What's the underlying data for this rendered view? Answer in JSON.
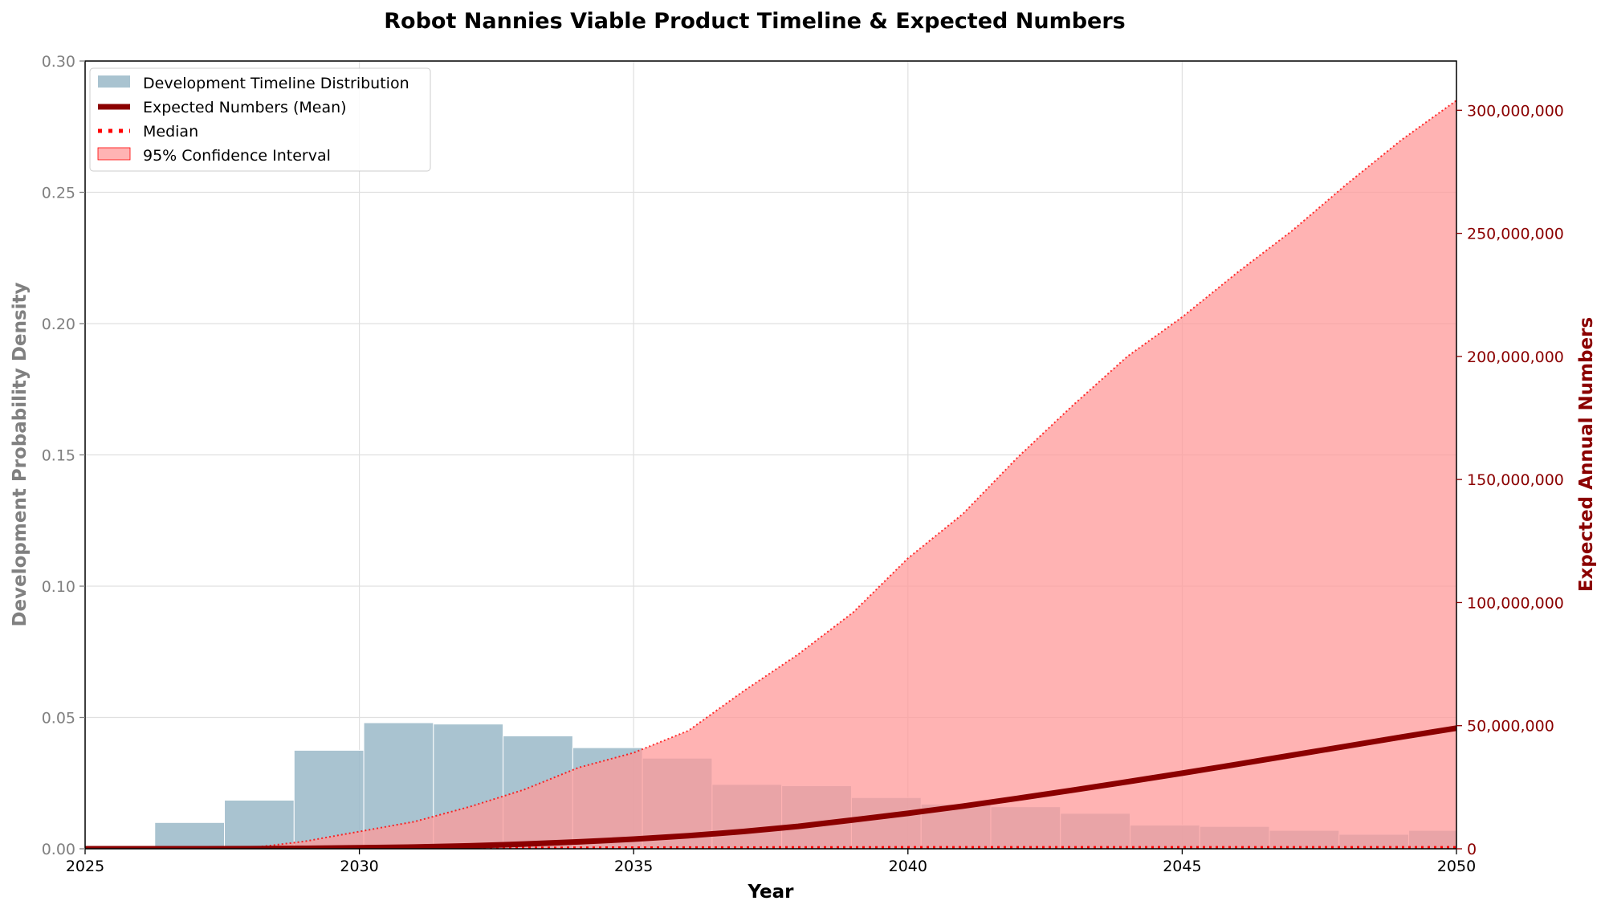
{
  "chart_data": {
    "type": "bar",
    "title": "Robot Nannies Viable Product Timeline & Expected Numbers",
    "xlabel": "Year",
    "ylabel_left": "Development Probability Density",
    "ylabel_right": "Expected Annual Numbers",
    "xlim": [
      2025,
      2050
    ],
    "ylim_left": [
      0,
      0.3
    ],
    "ylim_right": [
      0,
      320000000
    ],
    "x_ticks": [
      "2025",
      "2030",
      "2035",
      "2040",
      "2045",
      "2050"
    ],
    "y_left_ticks": [
      "0.00",
      "0.05",
      "0.10",
      "0.15",
      "0.20",
      "0.25",
      "0.30"
    ],
    "y_right_ticks": [
      "0",
      "50,000,000",
      "100,000,000",
      "150,000,000",
      "200,000,000",
      "250,000,000",
      "300,000,000"
    ],
    "grid": true,
    "legend_position": "top-left",
    "colors": {
      "histogram": "#9ab8c8",
      "mean": "#8b0000",
      "median": "#ff0000",
      "ci": "#ff9999",
      "right_axis": "#8b0000",
      "left_axis": "#808080"
    },
    "histogram": {
      "bin_edges": [
        2025.0,
        2026.27,
        2027.54,
        2028.81,
        2030.08,
        2031.35,
        2032.62,
        2033.89,
        2035.16,
        2036.43,
        2037.7,
        2038.97,
        2040.24,
        2041.51,
        2042.78,
        2044.05,
        2045.32,
        2046.59,
        2047.86,
        2049.13,
        2050.4
      ],
      "values": [
        0.0,
        0.01,
        0.0185,
        0.0375,
        0.048,
        0.0475,
        0.043,
        0.0385,
        0.0345,
        0.0245,
        0.024,
        0.0195,
        0.017,
        0.016,
        0.0135,
        0.009,
        0.0085,
        0.007,
        0.0055,
        0.007
      ]
    },
    "series": [
      {
        "name": "Expected Numbers (Mean)",
        "x": [
          2025,
          2026,
          2027,
          2028,
          2029,
          2030,
          2031,
          2032,
          2033,
          2034,
          2035,
          2036,
          2037,
          2038,
          2039,
          2040,
          2041,
          2042,
          2043,
          2044,
          2045,
          2046,
          2047,
          2048,
          2049,
          2050
        ],
        "values": [
          0,
          0,
          10000,
          50000,
          150000,
          400000,
          700000,
          1200000,
          1900000,
          2800000,
          3900000,
          5300000,
          7000000,
          9100000,
          11700000,
          14400000,
          17300000,
          20500000,
          23800000,
          27200000,
          30700000,
          34300000,
          38000000,
          41700000,
          45400000,
          49000000
        ]
      },
      {
        "name": "Median",
        "x": [
          2025,
          2030,
          2035,
          2040,
          2045,
          2050
        ],
        "values": [
          0,
          200000,
          500000,
          600000,
          600000,
          600000
        ]
      },
      {
        "name": "95% Confidence Interval",
        "x": [
          2025,
          2026,
          2027,
          2028,
          2029,
          2030,
          2031,
          2032,
          2033,
          2034,
          2035,
          2036,
          2037,
          2038,
          2039,
          2040,
          2041,
          2042,
          2043,
          2044,
          2045,
          2046,
          2047,
          2048,
          2049,
          2050
        ],
        "lower": [
          0,
          0,
          0,
          0,
          0,
          0,
          0,
          0,
          0,
          0,
          0,
          0,
          0,
          0,
          0,
          0,
          0,
          0,
          0,
          0,
          0,
          0,
          0,
          0,
          0,
          0
        ],
        "upper": [
          0,
          0,
          0,
          300000,
          3000000,
          7000000,
          11000000,
          17000000,
          24000000,
          33000000,
          39000000,
          48000000,
          64000000,
          79000000,
          96000000,
          118000000,
          136000000,
          159000000,
          180000000,
          200000000,
          216000000,
          234000000,
          251000000,
          270000000,
          288000000,
          304000000
        ]
      }
    ],
    "legend": [
      {
        "label": "Development Timeline Distribution",
        "kind": "patch",
        "color": "#9ab8c8"
      },
      {
        "label": "Expected Numbers (Mean)",
        "kind": "thick-line",
        "color": "#8b0000"
      },
      {
        "label": "Median",
        "kind": "dotted-line",
        "color": "#ff0000"
      },
      {
        "label": "95% Confidence Interval",
        "kind": "patch",
        "color": "#ff9999"
      }
    ]
  }
}
